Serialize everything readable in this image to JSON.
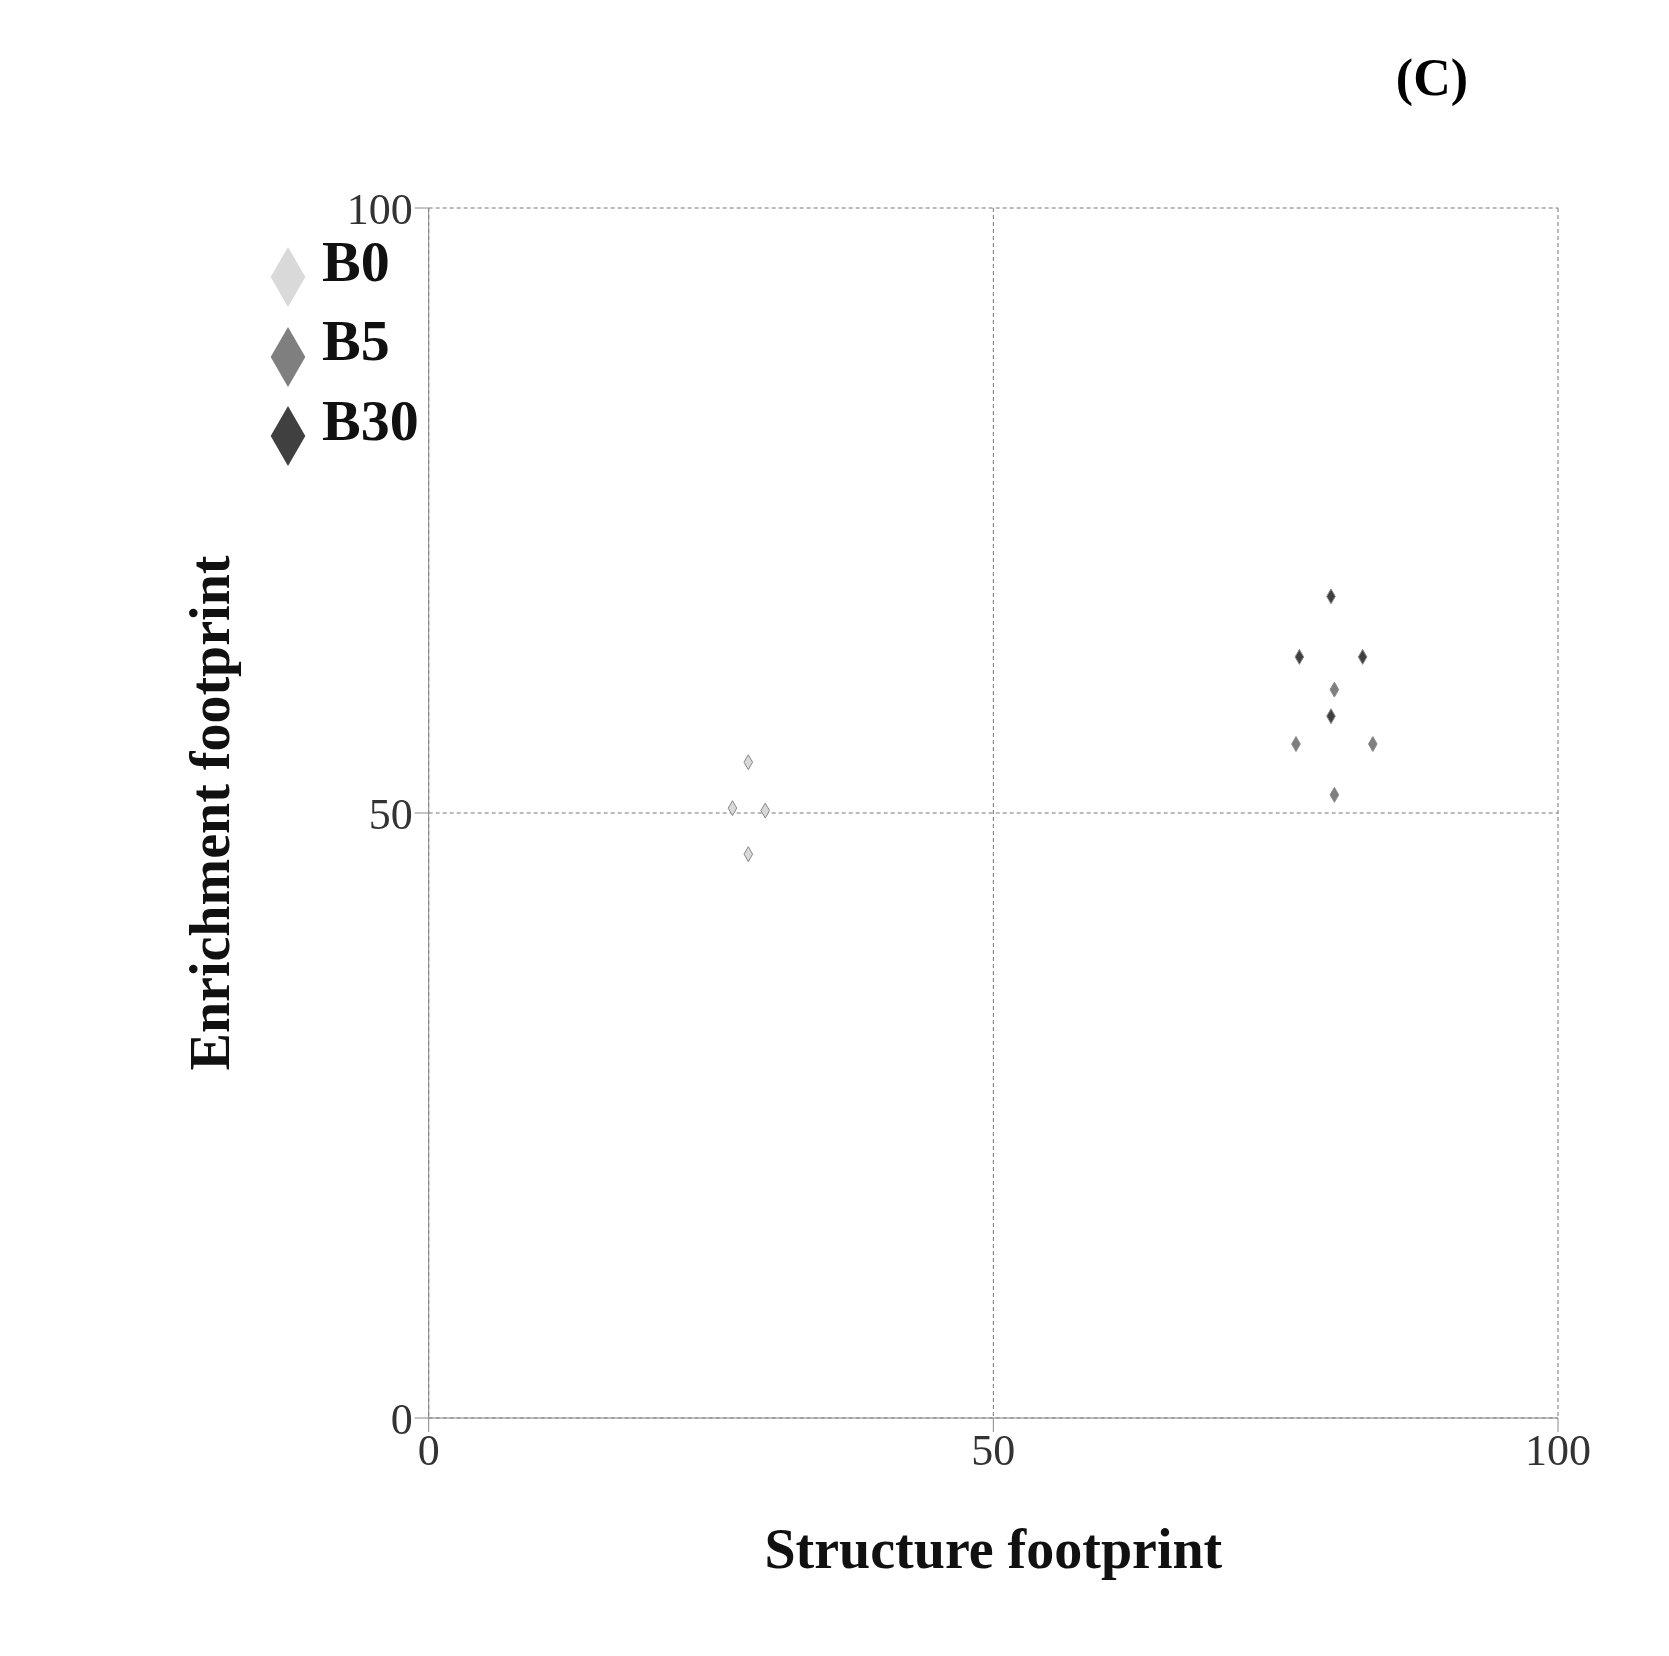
{
  "chart_data": {
    "type": "scatter",
    "title": "(C)",
    "xlabel": "Structure footprint",
    "ylabel": "Enrichment footprint",
    "xlim": [
      0,
      100
    ],
    "ylim": [
      0,
      100
    ],
    "xticks": [
      0,
      50,
      100
    ],
    "yticks": [
      0,
      50,
      100
    ],
    "grid": true,
    "legend": "top left",
    "marker": "diamond",
    "series": [
      {
        "name": "B0",
        "color": "#d9d9d9",
        "x": [
          28.3,
          26.9,
          29.8,
          28.3
        ],
        "values": [
          54.2,
          50.4,
          50.2,
          46.6
        ]
      },
      {
        "name": "B5",
        "color": "#7f7f7f",
        "x": [
          80.2,
          76.8,
          83.6,
          80.2
        ],
        "values": [
          60.2,
          55.7,
          55.7,
          51.5
        ]
      },
      {
        "name": "B30",
        "color": "#404040",
        "x": [
          79.9,
          77.1,
          82.7,
          79.9
        ],
        "values": [
          67.9,
          62.9,
          62.9,
          58.0
        ]
      }
    ]
  }
}
